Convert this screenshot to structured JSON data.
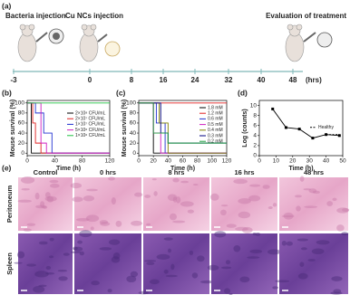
{
  "figure": {
    "panel_labels": [
      "(a)",
      "(b)",
      "(c)",
      "(d)",
      "(e)"
    ],
    "timeline": {
      "events": [
        "Bacteria injection",
        "Cu NCs injection",
        "Evaluation of treatment"
      ],
      "ticks": [
        "-3",
        "0",
        "8",
        "16",
        "24",
        "32",
        "40",
        "48"
      ],
      "unit": "(hrs)"
    },
    "histology": {
      "columns": [
        "Control",
        "0 hrs",
        "8 hrs",
        "16 hrs",
        "48 hrs"
      ],
      "rows": [
        "Peritoneum",
        "Spleen"
      ]
    }
  },
  "chart_data": [
    {
      "type": "step",
      "xlabel": "Time (h)",
      "ylabel": "Mouse survival (%)",
      "xlim": [
        0,
        120
      ],
      "ylim": [
        -5,
        105
      ],
      "xticks": [
        0,
        40,
        80,
        120
      ],
      "yticks": [
        0,
        20,
        40,
        60,
        80,
        100
      ],
      "legend": "right",
      "series": [
        {
          "name": "2×10⁸ CFU/mL",
          "color": "#000000",
          "x": [
            0,
            6,
            120
          ],
          "values": [
            100,
            0,
            0
          ]
        },
        {
          "name": "2×10⁷ CFU/mL",
          "color": "#e02020",
          "x": [
            0,
            8,
            12,
            20,
            120
          ],
          "values": [
            100,
            60,
            20,
            0,
            0
          ]
        },
        {
          "name": "1×10⁷ CFU/mL",
          "color": "#2030d0",
          "x": [
            0,
            12,
            24,
            36,
            120
          ],
          "values": [
            100,
            80,
            40,
            0,
            0
          ]
        },
        {
          "name": "5×10⁶ CFU/mL",
          "color": "#d020c0",
          "x": [
            0,
            20,
            28,
            120
          ],
          "values": [
            100,
            20,
            0,
            0
          ]
        },
        {
          "name": "1×10⁶ CFU/mL",
          "color": "#20c040",
          "x": [
            0,
            120
          ],
          "values": [
            100,
            100
          ]
        }
      ]
    },
    {
      "type": "step",
      "xlabel": "Time (h)",
      "ylabel": "Mouse survival (%)",
      "xlim": [
        0,
        120
      ],
      "ylim": [
        -5,
        105
      ],
      "xticks": [
        0,
        20,
        40,
        60,
        80,
        100,
        120
      ],
      "yticks": [
        0,
        20,
        40,
        60,
        80,
        100
      ],
      "legend": "upper right",
      "series": [
        {
          "name": "1.8 mM",
          "color": "#000000",
          "x": [
            0,
            20,
            120
          ],
          "values": [
            100,
            0,
            0
          ]
        },
        {
          "name": "1.2 mM",
          "color": "#e02020",
          "x": [
            0,
            120
          ],
          "values": [
            100,
            100
          ]
        },
        {
          "name": "0.6 mM",
          "color": "#2030d0",
          "x": [
            0,
            24,
            36,
            120
          ],
          "values": [
            100,
            60,
            0,
            0
          ]
        },
        {
          "name": "0.5 mM",
          "color": "#d020c0",
          "x": [
            0,
            20,
            30,
            120
          ],
          "values": [
            100,
            40,
            0,
            0
          ]
        },
        {
          "name": "0.4 mM",
          "color": "#808000",
          "x": [
            0,
            28,
            40,
            120
          ],
          "values": [
            100,
            60,
            0,
            0
          ]
        },
        {
          "name": "0.3 mM",
          "color": "#000080",
          "x": [
            0,
            30,
            40,
            120
          ],
          "values": [
            100,
            40,
            20,
            20
          ]
        },
        {
          "name": "0.2 mM",
          "color": "#20a040",
          "x": [
            0,
            20,
            40,
            120
          ],
          "values": [
            100,
            40,
            20,
            20
          ]
        }
      ]
    },
    {
      "type": "line",
      "xlabel": "Time (h)",
      "ylabel": "Log (counts)",
      "xlim": [
        0,
        50
      ],
      "ylim": [
        0,
        11
      ],
      "xticks": [
        0,
        10,
        20,
        30,
        40,
        50
      ],
      "yticks": [
        0,
        2,
        4,
        6,
        8,
        10
      ],
      "legend": "right",
      "series": [
        {
          "color": "#000000",
          "x": [
            8,
            16,
            24,
            32,
            40,
            48
          ],
          "values": [
            9.3,
            5.6,
            5.3,
            3.5,
            4.2,
            4.0
          ]
        },
        {
          "name": "Healthy",
          "color": "#000000",
          "dash": true,
          "x": [
            40,
            48
          ],
          "values": [
            4.2,
            4.2
          ]
        }
      ]
    }
  ]
}
